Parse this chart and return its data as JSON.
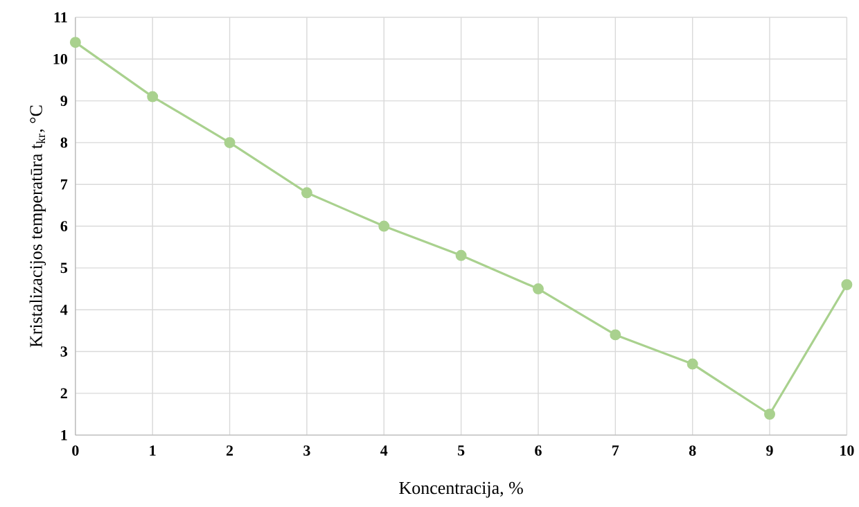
{
  "chart_data": {
    "type": "line",
    "xlabel": "Koncentracija, %",
    "ylabel": "Kristalizacijos temperatūra t$_{kr}$, °C",
    "x": [
      0,
      1,
      2,
      3,
      4,
      5,
      6,
      7,
      8,
      9,
      10
    ],
    "series": [
      {
        "color": "#a9d18e",
        "values": [
          10.4,
          9.1,
          8.0,
          6.8,
          6.0,
          5.3,
          4.5,
          3.4,
          2.7,
          1.5,
          4.6
        ]
      }
    ],
    "xlim": [
      0,
      10
    ],
    "xticks": [
      0,
      1,
      2,
      3,
      4,
      5,
      6,
      7,
      8,
      9,
      10
    ],
    "ylim": [
      1,
      11
    ],
    "yticks": [
      1,
      2,
      3,
      4,
      5,
      6,
      7,
      8,
      9,
      10,
      11
    ],
    "grid": true,
    "marker": "circle",
    "line_style": "solid"
  }
}
